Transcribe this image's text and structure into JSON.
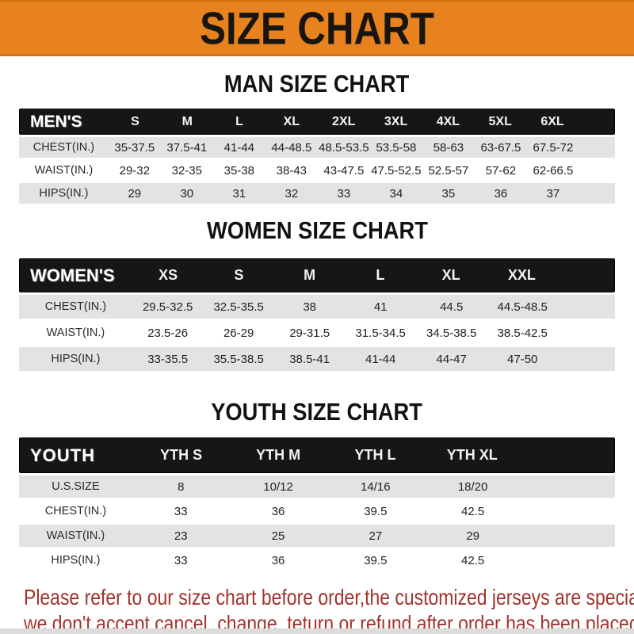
{
  "banner": {
    "title": "SIZE CHART"
  },
  "sections": [
    {
      "title": "MAN SIZE CHART",
      "header_label": "MEN'S",
      "columns": [
        "S",
        "M",
        "L",
        "XL",
        "2XL",
        "3XL",
        "4XL",
        "5XL",
        "6XL"
      ],
      "rows": [
        {
          "label": "CHEST(IN.)",
          "values": [
            "35-37.5",
            "37.5-41",
            "41-44",
            "44-48.5",
            "48.5-53.5",
            "53.5-58",
            "58-63",
            "63-67.5",
            "67.5-72"
          ]
        },
        {
          "label": "WAIST(IN.)",
          "values": [
            "29-32",
            "32-35",
            "35-38",
            "38-43",
            "43-47.5",
            "47.5-52.5",
            "52.5-57",
            "57-62",
            "62-66.5"
          ]
        },
        {
          "label": "HIPS(IN.)",
          "values": [
            "29",
            "30",
            "31",
            "32",
            "33",
            "34",
            "35",
            "36",
            "37"
          ]
        }
      ]
    },
    {
      "title": "WOMEN SIZE CHART",
      "header_label": "WOMEN'S",
      "columns": [
        "XS",
        "S",
        "M",
        "L",
        "XL",
        "XXL"
      ],
      "rows": [
        {
          "label": "CHEST(IN.)",
          "values": [
            "29.5-32.5",
            "32.5-35.5",
            "38",
            "41",
            "44.5",
            "44.5-48.5"
          ]
        },
        {
          "label": "WAIST(IN.)",
          "values": [
            "23.5-26",
            "26-29",
            "29-31.5",
            "31.5-34.5",
            "34.5-38.5",
            "38.5-42.5"
          ]
        },
        {
          "label": "HIPS(IN.)",
          "values": [
            "33-35.5",
            "35.5-38.5",
            "38.5-41",
            "41-44",
            "44-47",
            "47-50"
          ]
        }
      ]
    },
    {
      "title": "YOUTH SIZE CHART",
      "header_label": "YOUTH",
      "columns": [
        "YTH S",
        "YTH M",
        "YTH L",
        "YTH XL"
      ],
      "rows": [
        {
          "label": "U.S.SIZE",
          "values": [
            "8",
            "10/12",
            "14/16",
            "18/20"
          ]
        },
        {
          "label": "CHEST(IN.)",
          "values": [
            "33",
            "36",
            "39.5",
            "42.5"
          ]
        },
        {
          "label": "WAIST(IN.)",
          "values": [
            "23",
            "25",
            "27",
            "29"
          ]
        },
        {
          "label": "HIPS(IN.)",
          "values": [
            "33",
            "36",
            "39.5",
            "42.5"
          ]
        }
      ]
    }
  ],
  "footer": {
    "line1": "Please refer to our size chart before order,the customized jerseys are special products,",
    "line2": "we don't accept cancel, change, teturn or refund after order has been placed!"
  },
  "colors": {
    "banner_bg": "#E8821E",
    "banner_text": "#181511",
    "header_bar_bg": "#161616",
    "header_bar_text": "#FFFFFF",
    "row_stripe_gray": "#E3E3E3",
    "footer_text_red": "#A3322C",
    "bottom_strip_gray": "#DCDCDC"
  }
}
